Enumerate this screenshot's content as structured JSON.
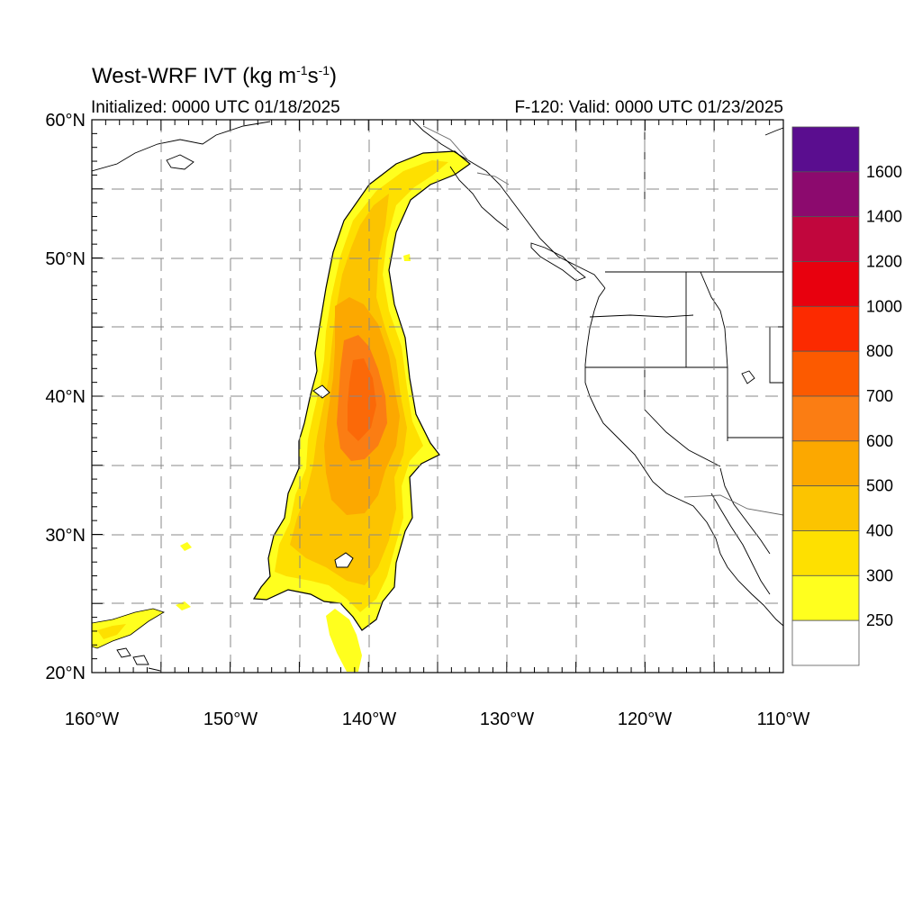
{
  "title": {
    "main": "West-WRF IVT (kg m",
    "exp1": "-1",
    "mid": "s",
    "exp2": "-1",
    "close": ")"
  },
  "init_text": "Initialized: 0000 UTC 01/18/2025",
  "valid_text": "F-120: Valid: 0000 UTC 01/23/2025",
  "axes": {
    "lat_labels": [
      "60°N",
      "50°N",
      "40°N",
      "30°N",
      "20°N"
    ],
    "lon_labels": [
      "160°W",
      "150°W",
      "140°W",
      "130°W",
      "120°W",
      "110°W"
    ],
    "lat_range": [
      20,
      60
    ],
    "lon_range": [
      -160,
      -110
    ],
    "grid": "dashed"
  },
  "colorbar": {
    "labels": [
      "1600",
      "1400",
      "1200",
      "1000",
      "800",
      "700",
      "600",
      "500",
      "400",
      "300",
      "250"
    ],
    "colors": [
      "#5a0d8f",
      "#8c0a6e",
      "#c1063d",
      "#e8000e",
      "#fc2a00",
      "#fc5a00",
      "#fb7d13",
      "#fca800",
      "#fcc400",
      "#fee000",
      "#ffff1e",
      "#ffffff"
    ]
  },
  "chart_data": {
    "type": "heatmap",
    "variable": "IVT",
    "units": "kg m-1 s-1",
    "levels": [
      250,
      300,
      400,
      500,
      600,
      700,
      800,
      1000,
      1200,
      1400,
      1600
    ],
    "features": [
      {
        "region": "plume_core",
        "lat_range": [
          36,
          44
        ],
        "lon_range": [
          -143,
          -139
        ],
        "ivt_max_approx": 650
      },
      {
        "region": "plume_body",
        "lat_range": [
          25,
          57
        ],
        "lon_range": [
          -148,
          -135
        ],
        "ivt_typical": 400
      },
      {
        "region": "alaska_arm",
        "lat_range": [
          53,
          57
        ],
        "lon_range": [
          -143,
          -135
        ],
        "ivt_typical": 300
      }
    ]
  },
  "colors": {
    "grid": "#888888",
    "coast": "#000000",
    "state_lines": "#000000"
  }
}
